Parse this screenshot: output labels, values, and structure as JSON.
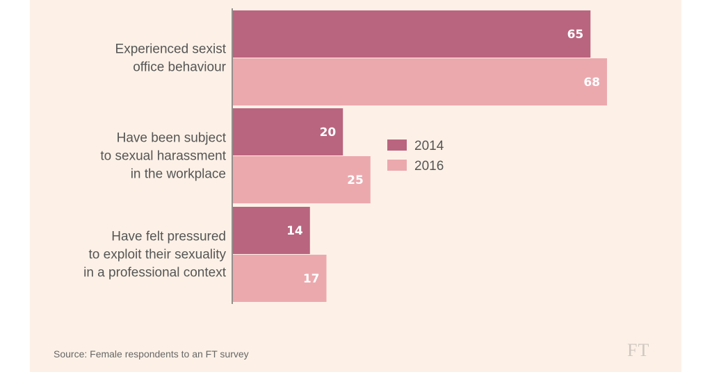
{
  "chart_data": {
    "type": "bar",
    "orientation": "horizontal",
    "categories": [
      [
        "Experienced sexist",
        "office behaviour"
      ],
      [
        "Have been subject",
        "to sexual harassment",
        "in the workplace"
      ],
      [
        "Have felt pressured",
        "to exploit their sexuality",
        "in a professional context"
      ]
    ],
    "series": [
      {
        "name": "2014",
        "values": [
          65,
          20,
          14
        ],
        "color": "#b9657f"
      },
      {
        "name": "2016",
        "values": [
          68,
          25,
          17
        ],
        "color": "#eba9ae"
      }
    ],
    "xlim": [
      0,
      68
    ],
    "legend": "center-right",
    "grid": false
  },
  "source": "Source: Female respondents to an FT survey",
  "logo": "FT"
}
